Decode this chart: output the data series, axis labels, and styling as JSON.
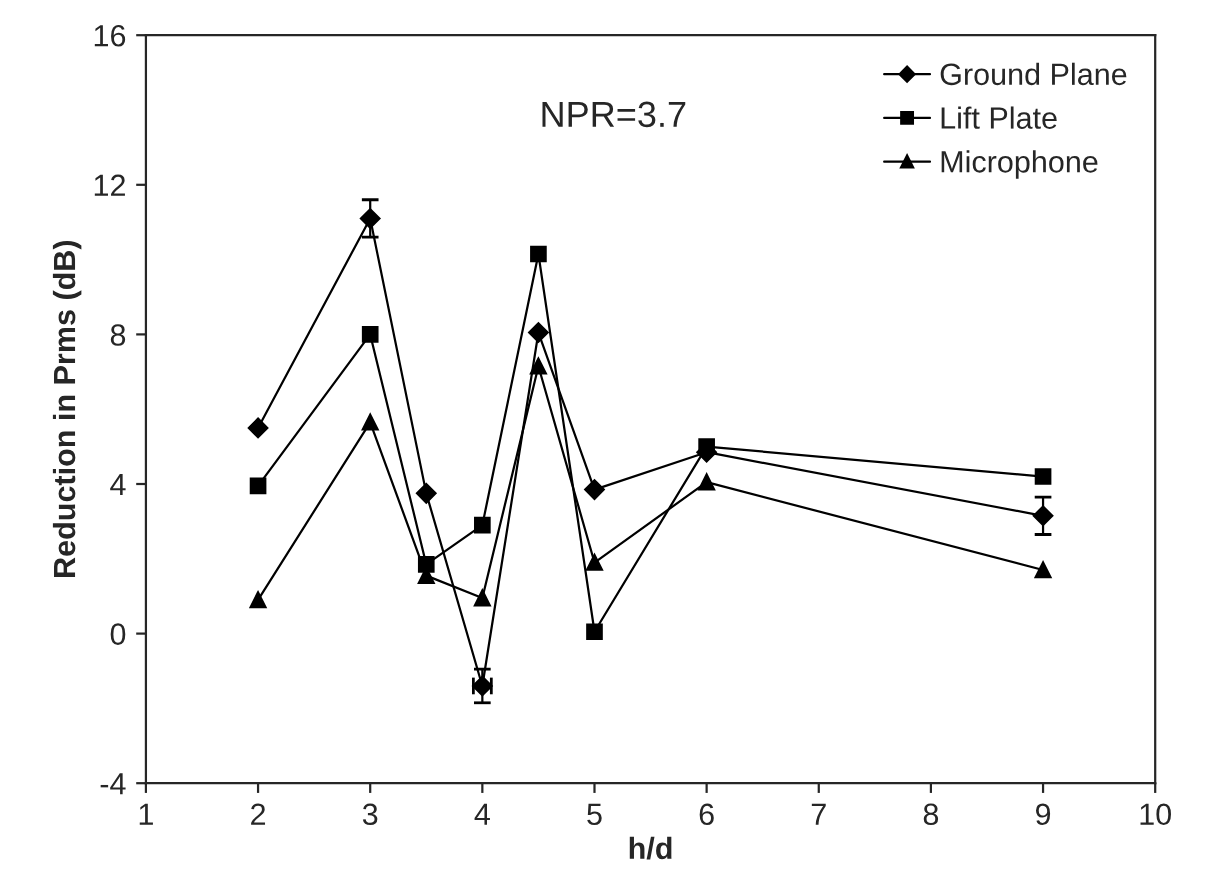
{
  "chart_data": {
    "type": "line",
    "xlabel": "h/d",
    "ylabel": "Reduction in Prms (dB)",
    "x": [
      2,
      3,
      3.5,
      4,
      4.5,
      5,
      6,
      9
    ],
    "xlim": [
      1,
      10
    ],
    "xticks": [
      1,
      2,
      3,
      4,
      5,
      6,
      7,
      8,
      9,
      10
    ],
    "ylim": [
      -4,
      16
    ],
    "yticks": [
      -4,
      0,
      4,
      8,
      12,
      16
    ],
    "series": [
      {
        "name": "Ground Plane",
        "color": "#000000",
        "marker": "diamond",
        "values": [
          5.5,
          11.1,
          3.75,
          -1.4,
          8.05,
          3.85,
          4.85,
          3.15
        ],
        "errors": [
          null,
          0.5,
          null,
          0.45,
          null,
          null,
          null,
          0.5
        ],
        "xerrors": [
          null,
          null,
          null,
          0.08,
          null,
          null,
          null,
          null
        ]
      },
      {
        "name": "Lift Plate",
        "color": "#000000",
        "marker": "square",
        "values": [
          3.95,
          8.0,
          1.85,
          2.9,
          10.15,
          0.05,
          5.0,
          4.2
        ]
      },
      {
        "name": "Microphone",
        "color": "#000000",
        "marker": "triangle",
        "values": [
          0.9,
          5.65,
          1.55,
          0.95,
          7.15,
          1.9,
          4.05,
          1.7
        ]
      }
    ],
    "annotations": [
      "NPR=3.7"
    ],
    "legend": "top right",
    "grid": false,
    "line_style": "solid"
  }
}
